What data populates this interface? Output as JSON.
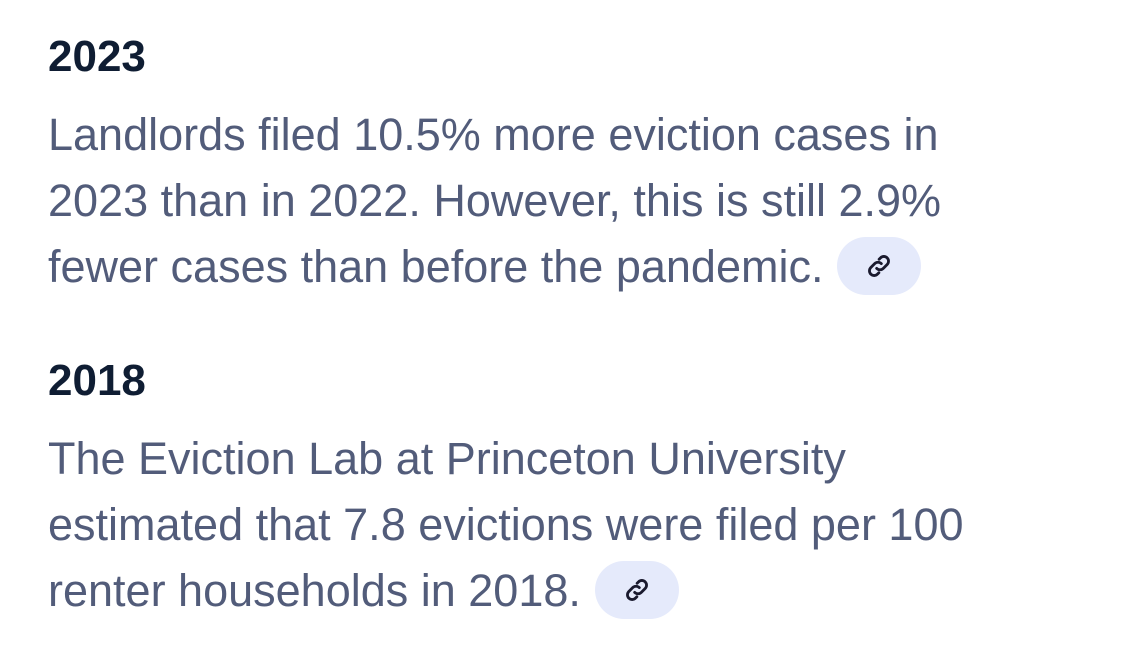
{
  "entries": [
    {
      "year": "2023",
      "lines": [
        "Landlords filed 10.5% more eviction cases in",
        "2023 than in 2022. However, this is still 2.9%",
        "fewer cases than before the pandemic."
      ]
    },
    {
      "year": "2018",
      "lines": [
        "The Eviction Lab at Princeton University",
        "estimated that 7.8 evictions were filed per 100",
        "renter households in 2018."
      ]
    }
  ]
}
